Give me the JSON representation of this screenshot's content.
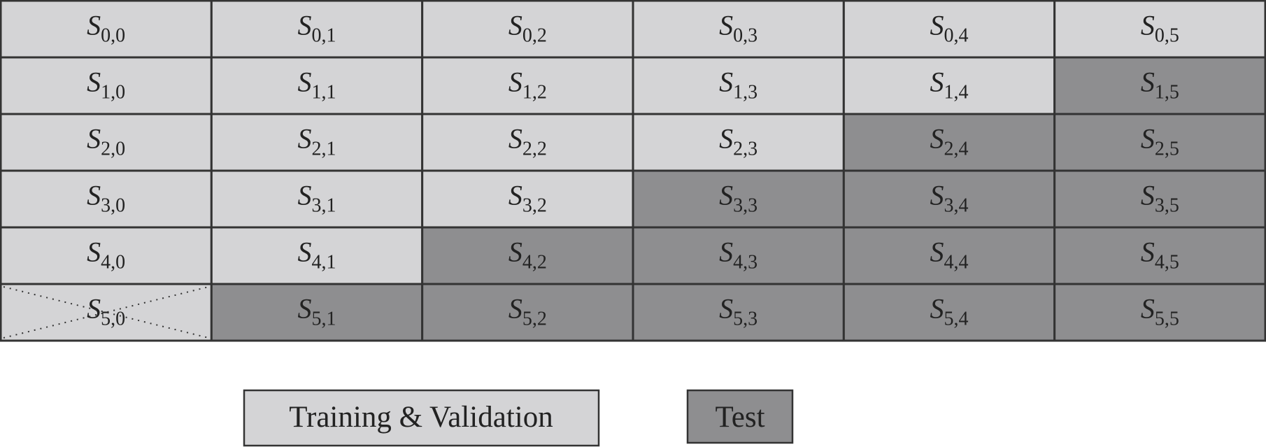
{
  "grid": {
    "rows": [
      [
        {
          "symbol": "S",
          "subscript": "0,0",
          "fill": "#d4d4d6"
        },
        {
          "symbol": "S",
          "subscript": "0,1",
          "fill": "#d4d4d6"
        },
        {
          "symbol": "S",
          "subscript": "0,2",
          "fill": "#d4d4d6"
        },
        {
          "symbol": "S",
          "subscript": "0,3",
          "fill": "#d4d4d6"
        },
        {
          "symbol": "S",
          "subscript": "0,4",
          "fill": "#d4d4d6"
        },
        {
          "symbol": "S",
          "subscript": "0,5",
          "fill": "#d4d4d6"
        }
      ],
      [
        {
          "symbol": "S",
          "subscript": "1,0",
          "fill": "#d4d4d6"
        },
        {
          "symbol": "S",
          "subscript": "1,1",
          "fill": "#d4d4d6"
        },
        {
          "symbol": "S",
          "subscript": "1,2",
          "fill": "#d4d4d6"
        },
        {
          "symbol": "S",
          "subscript": "1,3",
          "fill": "#d4d4d6"
        },
        {
          "symbol": "S",
          "subscript": "1,4",
          "fill": "#d4d4d6"
        },
        {
          "symbol": "S",
          "subscript": "1,5",
          "fill": "#8e8e90"
        }
      ],
      [
        {
          "symbol": "S",
          "subscript": "2,0",
          "fill": "#d4d4d6"
        },
        {
          "symbol": "S",
          "subscript": "2,1",
          "fill": "#d4d4d6"
        },
        {
          "symbol": "S",
          "subscript": "2,2",
          "fill": "#d4d4d6"
        },
        {
          "symbol": "S",
          "subscript": "2,3",
          "fill": "#d4d4d6"
        },
        {
          "symbol": "S",
          "subscript": "2,4",
          "fill": "#8e8e90"
        },
        {
          "symbol": "S",
          "subscript": "2,5",
          "fill": "#8e8e90"
        }
      ],
      [
        {
          "symbol": "S",
          "subscript": "3,0",
          "fill": "#d4d4d6"
        },
        {
          "symbol": "S",
          "subscript": "3,1",
          "fill": "#d4d4d6"
        },
        {
          "symbol": "S",
          "subscript": "3,2",
          "fill": "#d4d4d6"
        },
        {
          "symbol": "S",
          "subscript": "3,3",
          "fill": "#8e8e90"
        },
        {
          "symbol": "S",
          "subscript": "3,4",
          "fill": "#8e8e90"
        },
        {
          "symbol": "S",
          "subscript": "3,5",
          "fill": "#8e8e90"
        }
      ],
      [
        {
          "symbol": "S",
          "subscript": "4,0",
          "fill": "#d4d4d6"
        },
        {
          "symbol": "S",
          "subscript": "4,1",
          "fill": "#d4d4d6"
        },
        {
          "symbol": "S",
          "subscript": "4,2",
          "fill": "#8e8e90"
        },
        {
          "symbol": "S",
          "subscript": "4,3",
          "fill": "#8e8e90"
        },
        {
          "symbol": "S",
          "subscript": "4,4",
          "fill": "#8e8e90"
        },
        {
          "symbol": "S",
          "subscript": "4,5",
          "fill": "#8e8e90"
        }
      ],
      [
        {
          "symbol": "S",
          "subscript": "5,0",
          "fill": "#d4d4d6",
          "crossed": true
        },
        {
          "symbol": "S",
          "subscript": "5,1",
          "fill": "#8e8e90"
        },
        {
          "symbol": "S",
          "subscript": "5,2",
          "fill": "#8e8e90"
        },
        {
          "symbol": "S",
          "subscript": "5,3",
          "fill": "#8e8e90"
        },
        {
          "symbol": "S",
          "subscript": "5,4",
          "fill": "#8e8e90"
        },
        {
          "symbol": "S",
          "subscript": "5,5",
          "fill": "#8e8e90"
        }
      ]
    ]
  },
  "legend": [
    {
      "label": "Training & Validation",
      "fill": "#d4d4d6"
    },
    {
      "label": "Test",
      "fill": "#8e8e90"
    }
  ]
}
